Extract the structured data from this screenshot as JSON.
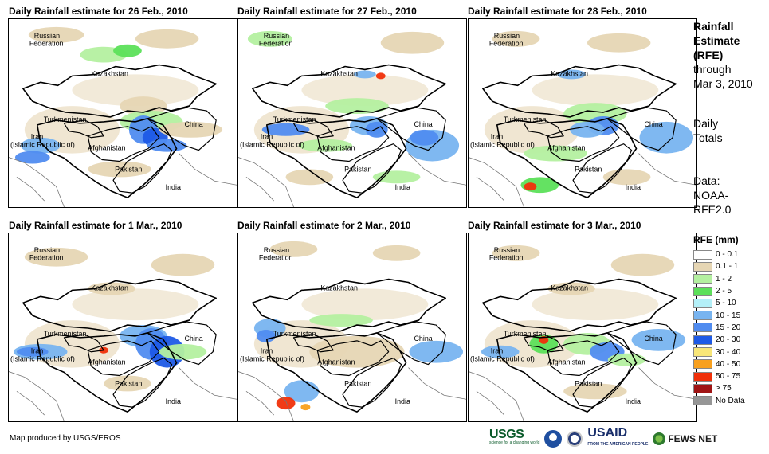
{
  "panels": [
    {
      "title": "Daily Rainfall estimate for 26 Feb., 2010"
    },
    {
      "title": "Daily Rainfall estimate for 27 Feb., 2010"
    },
    {
      "title": "Daily Rainfall estimate for 28 Feb., 2010"
    },
    {
      "title": "Daily Rainfall estimate for 1 Mar., 2010"
    },
    {
      "title": "Daily Rainfall estimate for 2 Mar., 2010"
    },
    {
      "title": "Daily Rainfall estimate for 3 Mar., 2010"
    }
  ],
  "labels": {
    "russia_1": "Russian",
    "russia_2": "Federation",
    "kazakhstan": "Kazakhstan",
    "turkmenistan": "Turkmenistan",
    "iran_1": "Iran",
    "iran_2": "(Islamic Republic of)",
    "afghanistan": "Afghanistan",
    "pakistan": "Pakistan",
    "china": "China",
    "india": "India"
  },
  "side": {
    "title_1": "Rainfall",
    "title_2": "Estimate",
    "title_3": "(RFE)",
    "through": "through",
    "date": "Mar 3, 2010",
    "daily": "Daily",
    "totals": "Totals",
    "data_label": "Data:",
    "source_1": "NOAA-",
    "source_2": "RFE2.0"
  },
  "legend": {
    "title": "RFE (mm)",
    "bins": [
      {
        "label": "0 - 0.1",
        "color": "#ffffff"
      },
      {
        "label": "0.1 - 1",
        "color": "#e6d6b4"
      },
      {
        "label": "1 - 2",
        "color": "#b4f0a0"
      },
      {
        "label": "2 - 5",
        "color": "#5ce05a"
      },
      {
        "label": "5 - 10",
        "color": "#b4f0f8"
      },
      {
        "label": "10 - 15",
        "color": "#78b4f0"
      },
      {
        "label": "15 - 20",
        "color": "#508cf0"
      },
      {
        "label": "20 - 30",
        "color": "#1e5ae6"
      },
      {
        "label": "30 - 40",
        "color": "#f8e678"
      },
      {
        "label": "40 - 50",
        "color": "#f8a01e"
      },
      {
        "label": "50 - 75",
        "color": "#f0300a"
      },
      {
        "label": "> 75",
        "color": "#a01414"
      },
      {
        "label": "No Data",
        "color": "#969696"
      }
    ]
  },
  "credit": "Map produced by USGS/EROS",
  "logos": {
    "usgs": "USGS",
    "usgs_sub": "science for a changing world",
    "usaid": "USAID",
    "usaid_sub": "FROM THE AMERICAN PEOPLE",
    "fews": "FEWS NET"
  }
}
